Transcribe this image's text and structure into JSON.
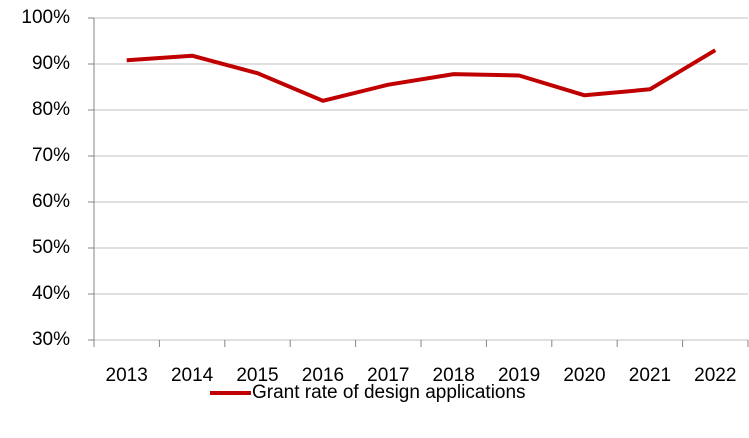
{
  "chart_data": {
    "type": "line",
    "categories": [
      "2013",
      "2014",
      "2015",
      "2016",
      "2017",
      "2018",
      "2019",
      "2020",
      "2021",
      "2022"
    ],
    "series": [
      {
        "name": "Grant rate of design applications",
        "color": "#c00000",
        "values": [
          90.8,
          91.8,
          88,
          82,
          85.5,
          87.8,
          87.5,
          83.2,
          84.5,
          93
        ]
      }
    ],
    "ylim": [
      30,
      100
    ],
    "yticks": [
      {
        "value": 30,
        "label": "30%"
      },
      {
        "value": 40,
        "label": "40%"
      },
      {
        "value": 50,
        "label": "50%"
      },
      {
        "value": 60,
        "label": "60%"
      },
      {
        "value": 70,
        "label": "70%"
      },
      {
        "value": 80,
        "label": "80%"
      },
      {
        "value": 90,
        "label": "90%"
      },
      {
        "value": 100,
        "label": "100%"
      }
    ],
    "grid": true,
    "legend": "bottom"
  }
}
